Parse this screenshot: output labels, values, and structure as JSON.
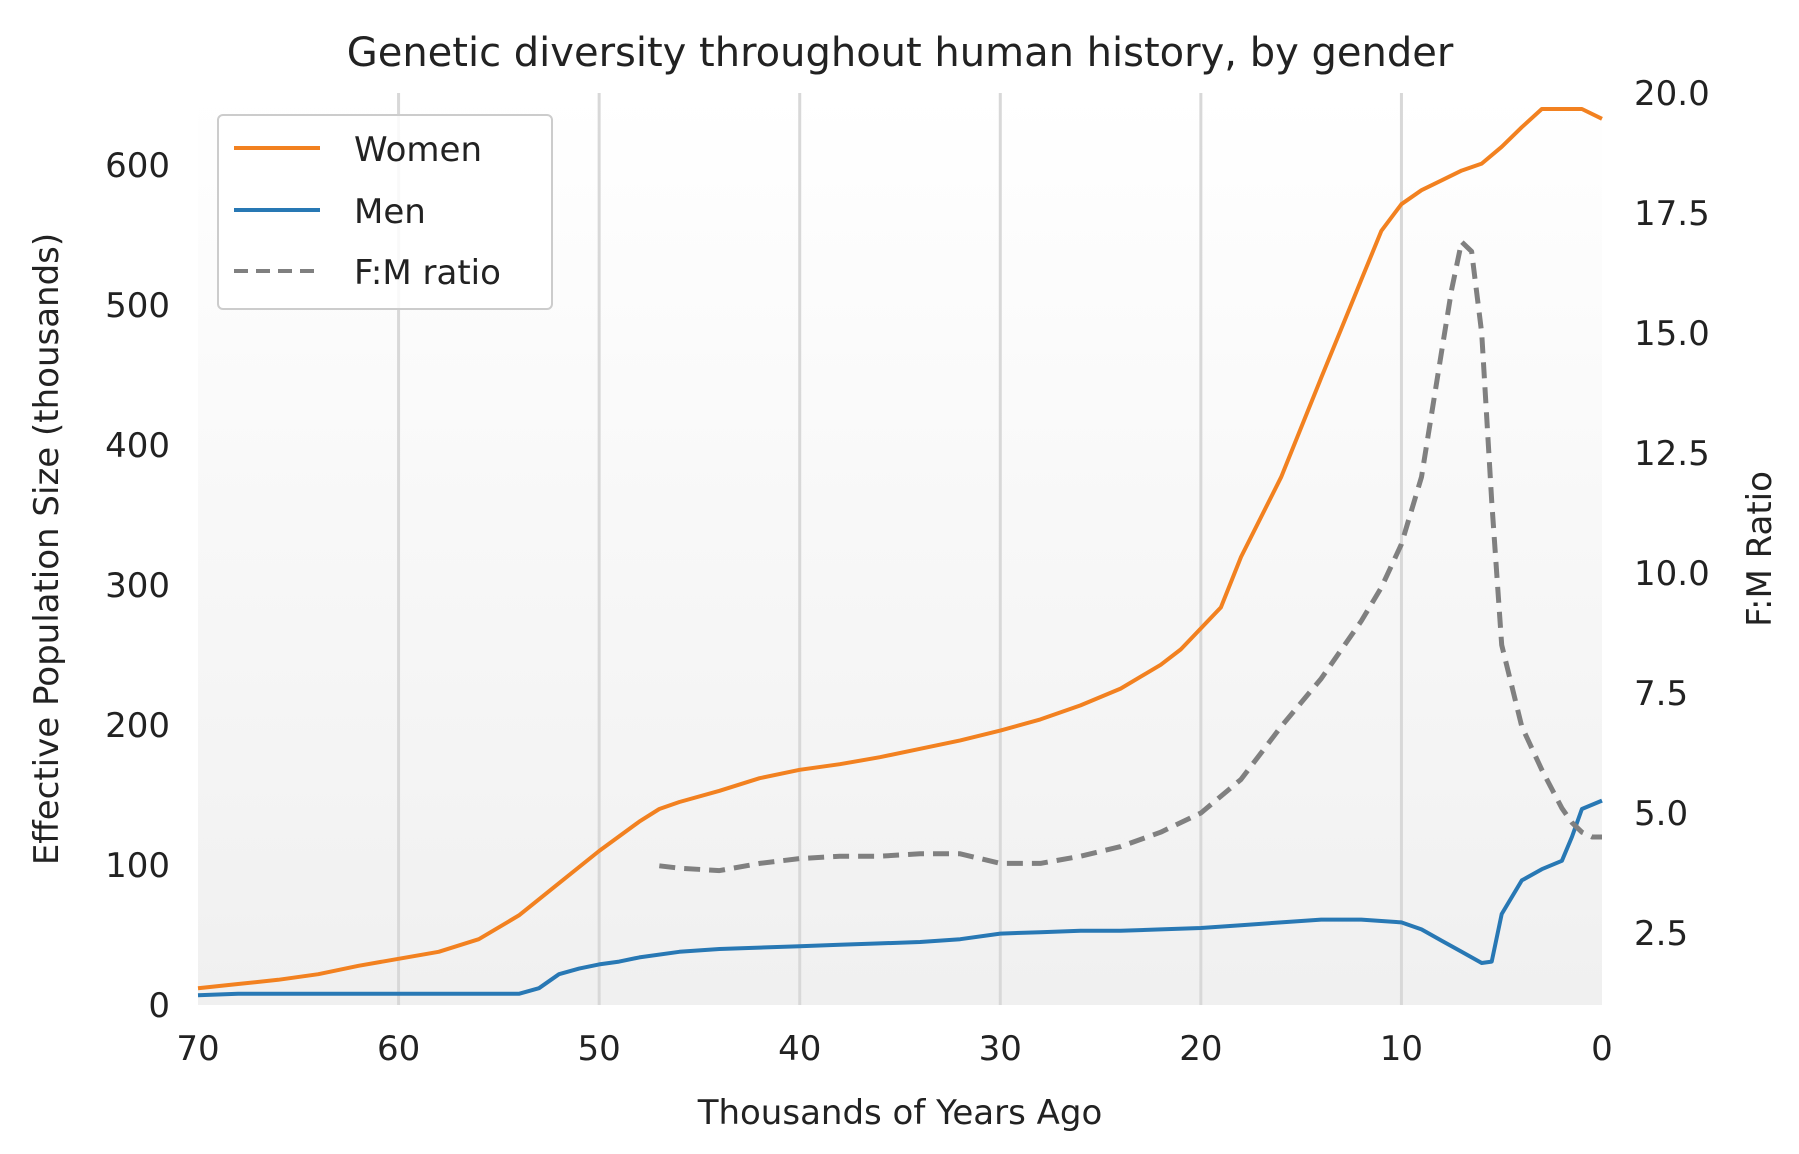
{
  "chart_data": {
    "type": "line",
    "title": "Genetic diversity throughout human history, by gender",
    "xlabel": "Thousands of Years Ago",
    "ylabel": "Effective Population Size (thousands)",
    "y2label": "F:M Ratio",
    "xlim": [
      70,
      0
    ],
    "ylim": [
      0,
      650
    ],
    "y2lim": [
      1.0,
      20.0
    ],
    "x_ticks": [
      70,
      60,
      50,
      40,
      30,
      20,
      10,
      0
    ],
    "y_ticks": [
      0,
      100,
      200,
      300,
      400,
      500,
      600
    ],
    "y2_ticks": [
      2.5,
      5.0,
      7.5,
      10.0,
      12.5,
      15.0,
      17.5,
      20.0
    ],
    "y2_tick_labels": [
      "2.5",
      "5.0",
      "7.5",
      "10.0",
      "12.5",
      "15.0",
      "17.5",
      "20.0"
    ],
    "grid": "vertical",
    "legend_position": "top-left",
    "colors": {
      "women": "#f28120",
      "men": "#2878b4",
      "ratio": "#808080",
      "grid": "#d8d8d8",
      "background_top": "#ffffff",
      "background_bottom": "#f0f0f0"
    },
    "series": [
      {
        "name": "Women",
        "axis": "left",
        "style": "solid",
        "x": [
          70,
          68,
          66,
          64,
          62,
          60,
          58,
          56,
          54,
          52,
          50,
          48,
          47,
          46,
          44,
          42,
          40,
          38,
          36,
          34,
          32,
          30,
          28,
          26,
          24,
          22,
          21,
          19,
          18,
          16,
          14,
          13,
          12,
          11,
          10,
          9,
          8,
          7,
          6,
          5,
          4,
          3,
          2,
          1,
          0
        ],
        "y": [
          12,
          15,
          18,
          22,
          28,
          33,
          38,
          47,
          64,
          87,
          110,
          131,
          140,
          145,
          153,
          162,
          168,
          172,
          177,
          183,
          189,
          196,
          204,
          214,
          226,
          243,
          254,
          284,
          320,
          377,
          448,
          483,
          518,
          553,
          572,
          582,
          589,
          596,
          601,
          613,
          627,
          640,
          640,
          640,
          633
        ]
      },
      {
        "name": "Men",
        "axis": "left",
        "style": "solid",
        "x": [
          70,
          68,
          66,
          64,
          62,
          60,
          58,
          56,
          54,
          53,
          52,
          51,
          50,
          49,
          48,
          46,
          44,
          42,
          40,
          38,
          36,
          34,
          32,
          30,
          28,
          26,
          24,
          22,
          20,
          18,
          16,
          14,
          13,
          12,
          11,
          10,
          9,
          8,
          7,
          6,
          5.5,
          5,
          4,
          3,
          2,
          1.5,
          1,
          0
        ],
        "y": [
          7,
          8,
          8,
          8,
          8,
          8,
          8,
          8,
          8,
          12,
          22,
          26,
          29,
          31,
          34,
          38,
          40,
          41,
          42,
          43,
          44,
          45,
          47,
          51,
          52,
          53,
          53,
          54,
          55,
          57,
          59,
          61,
          61,
          61,
          60,
          59,
          54,
          46,
          38,
          30,
          31,
          65,
          89,
          97,
          103,
          120,
          140,
          146
        ]
      },
      {
        "name": "F:M ratio",
        "axis": "right",
        "style": "dashed",
        "x": [
          47,
          46,
          44,
          42,
          40,
          38,
          36,
          34,
          32,
          30,
          28,
          26,
          24,
          22,
          20,
          18,
          16,
          14,
          12,
          11,
          10,
          9,
          8.5,
          8,
          7.5,
          7,
          6.5,
          6,
          5.5,
          5,
          4,
          3,
          2,
          1.5,
          1,
          0.5,
          0
        ],
        "y": [
          3.9,
          3.85,
          3.8,
          3.95,
          4.05,
          4.1,
          4.1,
          4.15,
          4.15,
          3.95,
          3.95,
          4.1,
          4.3,
          4.6,
          5.0,
          5.7,
          6.8,
          7.8,
          9.0,
          9.7,
          10.6,
          12.0,
          13.3,
          14.6,
          15.9,
          16.9,
          16.7,
          15.0,
          11.5,
          8.5,
          6.8,
          5.9,
          5.1,
          4.8,
          4.6,
          4.5,
          4.5
        ]
      }
    ]
  }
}
